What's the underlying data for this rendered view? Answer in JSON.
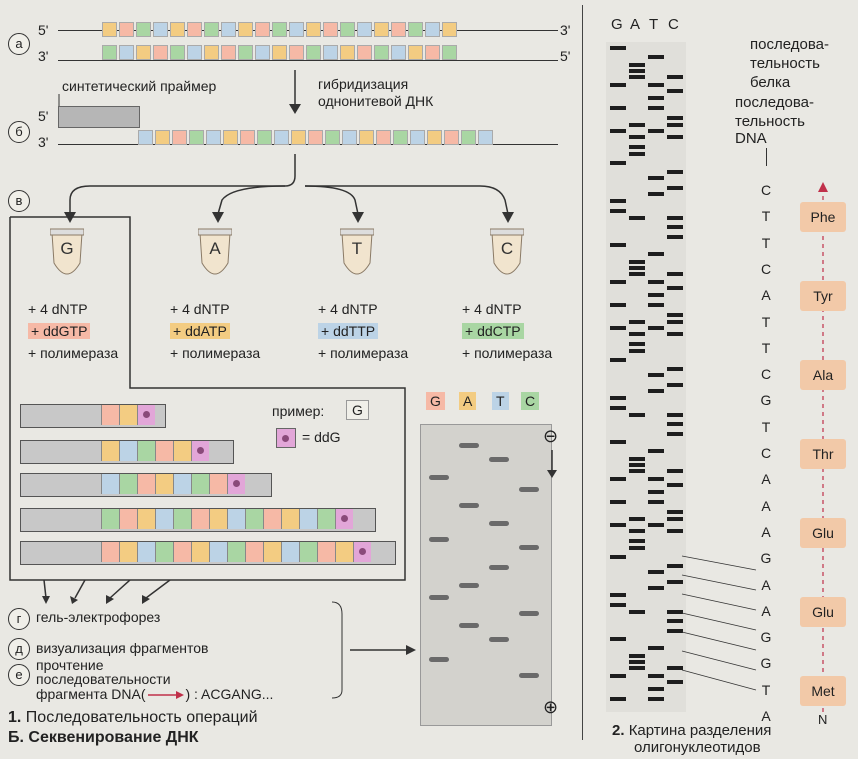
{
  "steps": {
    "a": "а",
    "b": "б",
    "v": "в",
    "g": "г",
    "d": "д",
    "e": "е"
  },
  "ends": {
    "five": "5'",
    "three": "3'"
  },
  "primer_label": "синтетический праймер",
  "hybrid_label_1": "гибридизация",
  "hybrid_label_2": "однонитевой ДНК",
  "tubes": [
    {
      "letter": "G",
      "dntp": "+ 4 dNTP",
      "dd": "+ ddGTP",
      "pol": "+ полимераза",
      "color": "#f6b9a6"
    },
    {
      "letter": "A",
      "dntp": "+ 4 dNTP",
      "dd": "+ ddATP",
      "pol": "+ полимераза",
      "color": "#f3cc82"
    },
    {
      "letter": "T",
      "dntp": "+ 4 dNTP",
      "dd": "+ ddTTP",
      "pol": "+ полимераза",
      "color": "#bcd3e6"
    },
    {
      "letter": "C",
      "dntp": "+ 4 dNTP",
      "dd": "+ ddCTP",
      "pol": "+ полимераза",
      "color": "#a9d6a3"
    }
  ],
  "example_label": "пример:",
  "example_base": "G",
  "ddg_label": "= ddG",
  "gel_letters": [
    "G",
    "A",
    "T",
    "C"
  ],
  "gel_minus": "⊖",
  "gel_plus": "⊕",
  "step_g_text": "гель-электрофорез",
  "step_d_text": "визуализация фрагментов",
  "step_e_line1": "прочтение",
  "step_e_line2": "последовательности",
  "step_e_line3": "фрагмента DNA(",
  "step_e_line3_end": ") : ACGANG...",
  "caption1_num": "1.",
  "caption1_text": "Последовательность операций",
  "caption_b": "Б. Секвенирование ДНК",
  "seq_header": [
    "G",
    "A",
    "T",
    "C"
  ],
  "protein_label": [
    "последова-",
    "тельность",
    "белка"
  ],
  "dna_label": [
    "последова-",
    "тельность",
    "DNA"
  ],
  "dna_sequence": [
    "C",
    "T",
    "T",
    "C",
    "A",
    "T",
    "T",
    "C",
    "G",
    "T",
    "C",
    "A",
    "A",
    "A",
    "G",
    "A",
    "A",
    "G",
    "G",
    "T",
    "A"
  ],
  "amino_acids": [
    "Phe",
    "Tyr",
    "Ala",
    "Thr",
    "Glu",
    "Glu",
    "Met"
  ],
  "n_label": "N",
  "caption2_num": "2.",
  "caption2_line1": "Картина разделения",
  "caption2_line2": "олигонуклеотидов"
}
